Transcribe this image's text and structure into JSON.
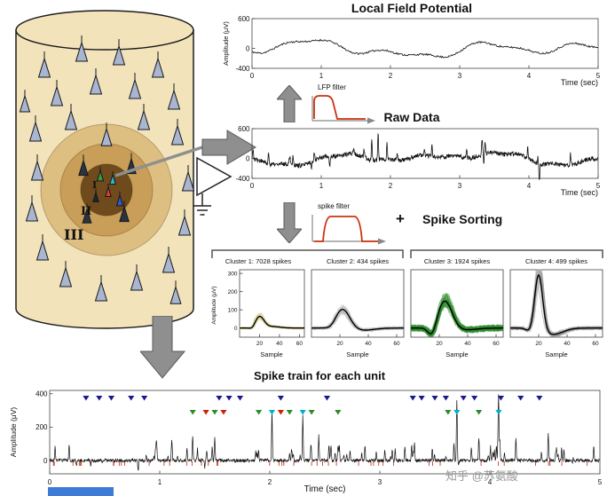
{
  "figure": {
    "watermark": "知乎 @苏氨酸",
    "blue_strip_color": "#3e7bd6"
  },
  "cortical_column": {
    "layer_labels": [
      "I",
      "II",
      "III"
    ],
    "neuron_colors": [
      "#3a9a3a",
      "#d04030",
      "#3858c8",
      "#2fb9c9"
    ]
  },
  "lfp_plot": {
    "type": "line",
    "title": "Local Field Potential",
    "ylabel": "Amplitude (μV)",
    "yticks": [
      600,
      0,
      -400
    ],
    "ylim": [
      -400,
      600
    ],
    "xticks": [
      0,
      1,
      2,
      3,
      4,
      5
    ],
    "xlim": [
      0,
      5
    ],
    "xlabel": "Time (sec)"
  },
  "lfp_filter": {
    "label": "LFP filter",
    "shape": "low-pass",
    "color": "#cc3311"
  },
  "raw_plot": {
    "type": "line",
    "title": "Raw Data",
    "yticks": [
      600,
      0,
      -400
    ],
    "ylim": [
      -400,
      600
    ],
    "xticks": [
      0,
      1,
      2,
      3,
      4,
      5
    ],
    "xlim": [
      0,
      5
    ],
    "xlabel": "Time (sec)"
  },
  "spike_filter": {
    "label": "spike filter",
    "shape": "band-pass",
    "color": "#cc3311"
  },
  "spike_sorting": {
    "plus": "+",
    "label": "Spike Sorting"
  },
  "clusters": {
    "ylabel": "Amplitude (μV)",
    "yticks": [
      0,
      100,
      200,
      300
    ],
    "ylim": [
      -50,
      320
    ],
    "xticks": [
      20,
      40,
      60
    ],
    "xlim": [
      0,
      65
    ],
    "xlabel": "Sample",
    "items": [
      {
        "title": "Cluster 1: 7028 spikes",
        "count": 7028,
        "trace_color": "#ddd9a8",
        "peak_uv": 60
      },
      {
        "title": "Cluster 2: 434 spikes",
        "count": 434,
        "trace_color": "#b9b9b9",
        "peak_uv": 100
      },
      {
        "title": "Cluster 3: 1924 spikes",
        "count": 1924,
        "trace_color": "#2e8b2e",
        "peak_uv": 150
      },
      {
        "title": "Cluster 4: 499 spikes",
        "count": 499,
        "trace_color": "#9a9a9a",
        "peak_uv": 300
      }
    ]
  },
  "spike_train": {
    "type": "line",
    "title": "Spike train for each unit",
    "ylabel": "Amplitude (μV)",
    "yticks": [
      400,
      200,
      0
    ],
    "ylim": [
      -80,
      420
    ],
    "xticks": [
      0,
      1,
      2,
      3,
      4,
      5
    ],
    "xlim": [
      0,
      5
    ],
    "xlabel": "Time (sec)",
    "marker_colors": {
      "unit1": "#1a1a8c",
      "unit2": "#cc2200",
      "unit3": "#2e8b2e",
      "unit4": "#00b0c8"
    },
    "unit1_times": [
      0.33,
      0.45,
      0.56,
      0.74,
      0.86,
      1.54,
      1.63,
      1.73,
      2.1,
      2.52,
      3.3,
      3.38,
      3.5,
      3.6,
      3.76,
      3.86,
      4.1,
      4.28,
      4.45
    ],
    "unit_markers": [
      {
        "t": 1.3,
        "u": "unit3"
      },
      {
        "t": 1.42,
        "u": "unit2"
      },
      {
        "t": 1.5,
        "u": "unit3"
      },
      {
        "t": 1.58,
        "u": "unit2"
      },
      {
        "t": 1.9,
        "u": "unit3"
      },
      {
        "t": 2.02,
        "u": "unit4"
      },
      {
        "t": 2.1,
        "u": "unit2"
      },
      {
        "t": 2.18,
        "u": "unit3"
      },
      {
        "t": 2.3,
        "u": "unit4"
      },
      {
        "t": 2.38,
        "u": "unit3"
      },
      {
        "t": 2.62,
        "u": "unit3"
      },
      {
        "t": 3.62,
        "u": "unit3"
      },
      {
        "t": 3.7,
        "u": "unit4"
      },
      {
        "t": 3.9,
        "u": "unit3"
      },
      {
        "t": 4.08,
        "u": "unit4"
      }
    ],
    "large_spikes": [
      {
        "t": 1.3,
        "a": 120
      },
      {
        "t": 1.5,
        "a": 135
      },
      {
        "t": 2.02,
        "a": 300
      },
      {
        "t": 2.3,
        "a": 270
      },
      {
        "t": 2.62,
        "a": 95
      },
      {
        "t": 3.7,
        "a": 370
      },
      {
        "t": 3.9,
        "a": 140
      },
      {
        "t": 4.08,
        "a": 330
      }
    ]
  }
}
